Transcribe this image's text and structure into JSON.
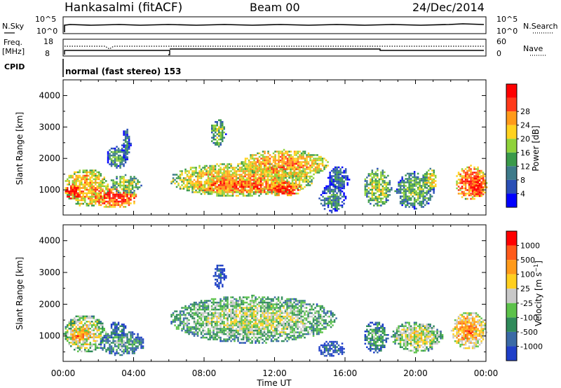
{
  "header": {
    "station": "Hankasalmi (fitACF)",
    "beam": "Beam 00",
    "date": "24/Dec/2014"
  },
  "nsky_panel": {
    "left_label": "N.Sky",
    "right_label": "N.Search",
    "left_ticks": [
      "10^5",
      "10^0"
    ],
    "right_ticks": [
      "10^5",
      "10^0"
    ]
  },
  "freq_panel": {
    "left_label_1": "Freq.",
    "left_label_2": "[MHz]",
    "right_label": "Nave",
    "left_ticks": [
      "18",
      "8"
    ],
    "right_ticks": [
      "60",
      "0"
    ]
  },
  "cpid_panel": {
    "label": "CPID",
    "text": "normal (fast stereo) 153"
  },
  "chart_data": [
    {
      "type": "heatmap",
      "quantity": "Power",
      "ylabel": "Slant Range [km]",
      "xlabel": "",
      "x_ticks": [
        "00:00",
        "04:00",
        "08:00",
        "12:00",
        "16:00",
        "20:00",
        "00:00"
      ],
      "y_ticks": [
        1000,
        2000,
        3000,
        4000
      ],
      "xlim_hours": [
        0,
        24
      ],
      "ylim_km": [
        200,
        4500
      ],
      "colorbar": {
        "label": "Power [dB]",
        "ticks": [
          "4",
          "8",
          "12",
          "16",
          "20",
          "24",
          "28"
        ],
        "colors": [
          "#0000ff",
          "#2a4fb6",
          "#3d7a8a",
          "#3a9a4a",
          "#8fd23a",
          "#ffd21f",
          "#ff9a1a",
          "#ff3a1a",
          "#ff0000"
        ]
      },
      "echo_regions": [
        {
          "t": [
            0.0,
            2.6
          ],
          "r": [
            500,
            1700
          ],
          "level": 0.72
        },
        {
          "t": [
            0.0,
            1.0
          ],
          "r": [
            700,
            1200
          ],
          "level": 0.95
        },
        {
          "t": [
            1.6,
            4.2
          ],
          "r": [
            450,
            1100
          ],
          "level": 0.9
        },
        {
          "t": [
            2.4,
            3.6
          ],
          "r": [
            1700,
            2400
          ],
          "level": 0.4
        },
        {
          "t": [
            2.6,
            4.4
          ],
          "r": [
            900,
            1500
          ],
          "level": 0.55
        },
        {
          "t": [
            3.3,
            3.8
          ],
          "r": [
            1900,
            3000
          ],
          "level": 0.3
        },
        {
          "t": [
            6.0,
            14.2
          ],
          "r": [
            800,
            1900
          ],
          "level": 0.7
        },
        {
          "t": [
            7.2,
            12.8
          ],
          "r": [
            900,
            1400
          ],
          "level": 0.85
        },
        {
          "t": [
            10.0,
            15.0
          ],
          "r": [
            1400,
            2300
          ],
          "level": 0.75
        },
        {
          "t": [
            8.3,
            9.2
          ],
          "r": [
            2400,
            3300
          ],
          "level": 0.5
        },
        {
          "t": [
            11.5,
            13.5
          ],
          "r": [
            800,
            1300
          ],
          "level": 0.9
        },
        {
          "t": [
            14.5,
            16.0
          ],
          "r": [
            300,
            1200
          ],
          "level": 0.35
        },
        {
          "t": [
            15.0,
            16.2
          ],
          "r": [
            1000,
            1800
          ],
          "level": 0.3
        },
        {
          "t": [
            17.0,
            18.6
          ],
          "r": [
            500,
            1700
          ],
          "level": 0.55
        },
        {
          "t": [
            18.8,
            21.0
          ],
          "r": [
            400,
            1600
          ],
          "level": 0.45
        },
        {
          "t": [
            20.4,
            21.2
          ],
          "r": [
            1000,
            1700
          ],
          "level": 0.65
        },
        {
          "t": [
            22.2,
            24.0
          ],
          "r": [
            700,
            1800
          ],
          "level": 0.85
        },
        {
          "t": [
            23.0,
            24.0
          ],
          "r": [
            800,
            1500
          ],
          "level": 0.97
        }
      ]
    },
    {
      "type": "heatmap",
      "quantity": "Velocity",
      "ylabel": "Slant Range [km]",
      "xlabel": "Time UT",
      "x_ticks": [
        "00:00",
        "04:00",
        "08:00",
        "12:00",
        "16:00",
        "20:00",
        "00:00"
      ],
      "y_ticks": [
        1000,
        2000,
        3000,
        4000
      ],
      "xlim_hours": [
        0,
        24
      ],
      "ylim_km": [
        200,
        4500
      ],
      "colorbar": {
        "label": "Velocity [m s^-1]",
        "ticks": [
          "1000",
          "500",
          "100",
          "25",
          "-25",
          "-100",
          "-500",
          "-1000"
        ],
        "colors": [
          "#1f3fc8",
          "#3a6aa6",
          "#2f8a5a",
          "#5cc24a",
          "#c8c8c8",
          "#ffcf1f",
          "#ff9a1a",
          "#ff5a1a",
          "#ff0000"
        ]
      },
      "echo_regions": [
        {
          "t": [
            0.0,
            2.4
          ],
          "r": [
            500,
            1700
          ],
          "level": 0.6
        },
        {
          "t": [
            0.3,
            1.4
          ],
          "r": [
            800,
            1300
          ],
          "level": 0.78
        },
        {
          "t": [
            2.0,
            4.6
          ],
          "r": [
            400,
            1200
          ],
          "level": 0.35
        },
        {
          "t": [
            2.6,
            3.6
          ],
          "r": [
            1000,
            1500
          ],
          "level": 0.25
        },
        {
          "t": [
            6.0,
            15.5
          ],
          "r": [
            800,
            2300
          ],
          "level": 0.5
        },
        {
          "t": [
            8.5,
            9.2
          ],
          "r": [
            2500,
            3300
          ],
          "level": 0.15
        },
        {
          "t": [
            14.4,
            16.0
          ],
          "r": [
            350,
            900
          ],
          "level": 0.2
        },
        {
          "t": [
            17.0,
            18.4
          ],
          "r": [
            500,
            1500
          ],
          "level": 0.35
        },
        {
          "t": [
            18.6,
            21.5
          ],
          "r": [
            500,
            1500
          ],
          "level": 0.55
        },
        {
          "t": [
            22.0,
            24.0
          ],
          "r": [
            600,
            1800
          ],
          "level": 0.72
        },
        {
          "t": [
            22.6,
            23.4
          ],
          "r": [
            900,
            1500
          ],
          "level": 0.82
        }
      ]
    }
  ]
}
